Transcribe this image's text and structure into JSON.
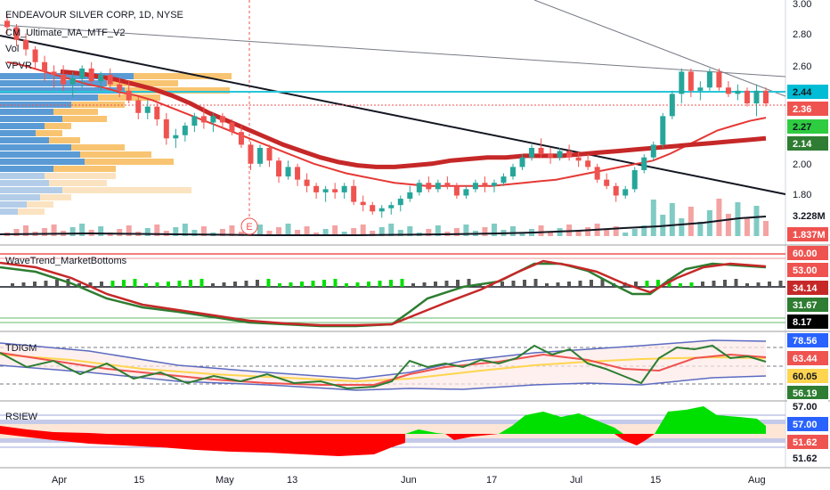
{
  "chart_title": "ENDEAVOUR SILVER CORP, 1D, NYSE",
  "legend": {
    "indicator1": "CM_Ultimate_MA_MTF_V2",
    "vol": "Vol",
    "vpvr": "VPVR"
  },
  "pane_titles": {
    "wavetrend": "WaveTrend_MarketBottoms",
    "tdi": "TDIGM",
    "rsi": "RSIEW"
  },
  "event_marker": "E",
  "price_axis_ticks": [
    "3.00",
    "2.80",
    "2.60",
    "1.80",
    "2.00"
  ],
  "price_badges": [
    {
      "value": "2.44",
      "color": "#00bcd4",
      "text_color": "#131722"
    },
    {
      "value": "2.36",
      "color": "#ef5350",
      "text_color": "#ffffff"
    },
    {
      "value": "2.27",
      "color": "#2ecc40",
      "text_color": "#131722"
    },
    {
      "value": "2.14",
      "color": "#2e7d32",
      "text_color": "#ffffff"
    },
    {
      "value": "3.228M",
      "color": "#ffffff",
      "text_color": "#131722"
    },
    {
      "value": "1.837M",
      "color": "#ef5350",
      "text_color": "#ffffff"
    }
  ],
  "wavetrend_badges": [
    {
      "value": "60.00",
      "color": "#ef5350",
      "text_color": "#ffffff"
    },
    {
      "value": "53.00",
      "color": "#ef5350",
      "text_color": "#ffffff"
    },
    {
      "value": "34.14",
      "color": "#c62828",
      "text_color": "#ffffff"
    },
    {
      "value": "31.67",
      "color": "#2e7d32",
      "text_color": "#ffffff"
    },
    {
      "value": "8.17",
      "color": "#000000",
      "text_color": "#ffffff"
    }
  ],
  "tdi_badges": [
    {
      "value": "78.56",
      "color": "#2962ff",
      "text_color": "#ffffff"
    },
    {
      "value": "63.44",
      "color": "#ef5350",
      "text_color": "#ffffff"
    },
    {
      "value": "60.05",
      "color": "#ffd54f",
      "text_color": "#131722"
    },
    {
      "value": "56.19",
      "color": "#2e7d32",
      "text_color": "#ffffff"
    }
  ],
  "rsi_badges": [
    {
      "value": "57.00",
      "color": "#ffffff",
      "text_color": "#131722"
    },
    {
      "value": "57.00",
      "color": "#2962ff",
      "text_color": "#ffffff"
    },
    {
      "value": "51.62",
      "color": "#ef5350",
      "text_color": "#ffffff"
    },
    {
      "value": "51.62",
      "color": "#ffffff",
      "text_color": "#131722"
    }
  ],
  "time_axis": [
    "Apr",
    "15",
    "May",
    "13",
    "Jun",
    "17",
    "Jul",
    "15",
    "Aug"
  ],
  "chart_data": {
    "type": "candlestick",
    "x_unit": "trading day",
    "candles": [
      [
        2.88,
        2.92,
        2.8,
        2.84
      ],
      [
        2.84,
        2.86,
        2.72,
        2.76
      ],
      [
        2.76,
        2.8,
        2.66,
        2.7
      ],
      [
        2.7,
        2.72,
        2.58,
        2.62
      ],
      [
        2.62,
        2.66,
        2.5,
        2.56
      ],
      [
        2.56,
        2.6,
        2.46,
        2.54
      ],
      [
        2.54,
        2.6,
        2.44,
        2.48
      ],
      [
        2.48,
        2.56,
        2.4,
        2.52
      ],
      [
        2.52,
        2.6,
        2.46,
        2.58
      ],
      [
        2.58,
        2.62,
        2.48,
        2.5
      ],
      [
        2.5,
        2.56,
        2.44,
        2.54
      ],
      [
        2.54,
        2.58,
        2.46,
        2.48
      ],
      [
        2.48,
        2.52,
        2.4,
        2.44
      ],
      [
        2.44,
        2.5,
        2.36,
        2.38
      ],
      [
        2.38,
        2.4,
        2.26,
        2.3
      ],
      [
        2.3,
        2.38,
        2.26,
        2.34
      ],
      [
        2.34,
        2.36,
        2.22,
        2.26
      ],
      [
        2.26,
        2.3,
        2.1,
        2.14
      ],
      [
        2.14,
        2.2,
        2.08,
        2.16
      ],
      [
        2.16,
        2.24,
        2.12,
        2.22
      ],
      [
        2.22,
        2.3,
        2.18,
        2.28
      ],
      [
        2.28,
        2.34,
        2.2,
        2.24
      ],
      [
        2.24,
        2.3,
        2.18,
        2.28
      ],
      [
        2.28,
        2.3,
        2.2,
        2.24
      ],
      [
        2.24,
        2.26,
        2.16,
        2.18
      ],
      [
        2.18,
        2.22,
        2.08,
        2.1
      ],
      [
        2.1,
        2.12,
        1.94,
        1.98
      ],
      [
        1.98,
        2.1,
        1.96,
        2.08
      ],
      [
        2.08,
        2.1,
        1.96,
        2.0
      ],
      [
        2.0,
        2.02,
        1.86,
        1.9
      ],
      [
        1.9,
        2.0,
        1.88,
        1.96
      ],
      [
        1.96,
        1.98,
        1.84,
        1.88
      ],
      [
        1.88,
        1.92,
        1.8,
        1.84
      ],
      [
        1.84,
        1.86,
        1.76,
        1.8
      ],
      [
        1.8,
        1.84,
        1.74,
        1.82
      ],
      [
        1.82,
        1.86,
        1.76,
        1.8
      ],
      [
        1.8,
        1.86,
        1.76,
        1.84
      ],
      [
        1.84,
        1.88,
        1.72,
        1.74
      ],
      [
        1.74,
        1.78,
        1.68,
        1.72
      ],
      [
        1.72,
        1.74,
        1.66,
        1.68
      ],
      [
        1.68,
        1.72,
        1.64,
        1.7
      ],
      [
        1.7,
        1.74,
        1.66,
        1.72
      ],
      [
        1.72,
        1.78,
        1.68,
        1.76
      ],
      [
        1.76,
        1.84,
        1.74,
        1.8
      ],
      [
        1.8,
        1.88,
        1.78,
        1.86
      ],
      [
        1.86,
        1.9,
        1.8,
        1.82
      ],
      [
        1.82,
        1.88,
        1.8,
        1.86
      ],
      [
        1.86,
        1.9,
        1.82,
        1.84
      ],
      [
        1.84,
        1.86,
        1.76,
        1.78
      ],
      [
        1.78,
        1.84,
        1.76,
        1.82
      ],
      [
        1.82,
        1.88,
        1.8,
        1.86
      ],
      [
        1.86,
        1.9,
        1.8,
        1.84
      ],
      [
        1.84,
        1.88,
        1.8,
        1.86
      ],
      [
        1.86,
        1.92,
        1.84,
        1.9
      ],
      [
        1.9,
        1.98,
        1.88,
        1.96
      ],
      [
        1.96,
        2.04,
        1.94,
        2.02
      ],
      [
        2.02,
        2.1,
        2.0,
        2.08
      ],
      [
        2.08,
        2.14,
        2.02,
        2.04
      ],
      [
        2.04,
        2.08,
        1.98,
        2.02
      ],
      [
        2.02,
        2.08,
        2.0,
        2.06
      ],
      [
        2.06,
        2.1,
        2.0,
        2.02
      ],
      [
        2.02,
        2.06,
        1.96,
        2.0
      ],
      [
        2.0,
        2.04,
        1.94,
        1.96
      ],
      [
        1.96,
        1.98,
        1.86,
        1.88
      ],
      [
        1.88,
        1.92,
        1.82,
        1.84
      ],
      [
        1.84,
        1.86,
        1.74,
        1.78
      ],
      [
        1.78,
        1.84,
        1.76,
        1.82
      ],
      [
        1.82,
        1.96,
        1.8,
        1.94
      ],
      [
        1.94,
        2.04,
        1.92,
        2.02
      ],
      [
        2.02,
        2.12,
        2.0,
        2.1
      ],
      [
        2.1,
        2.3,
        2.08,
        2.28
      ],
      [
        2.28,
        2.44,
        2.26,
        2.42
      ],
      [
        2.42,
        2.58,
        2.36,
        2.56
      ],
      [
        2.56,
        2.58,
        2.4,
        2.44
      ],
      [
        2.44,
        2.5,
        2.38,
        2.46
      ],
      [
        2.46,
        2.58,
        2.44,
        2.56
      ],
      [
        2.56,
        2.58,
        2.44,
        2.46
      ],
      [
        2.46,
        2.5,
        2.4,
        2.42
      ],
      [
        2.42,
        2.48,
        2.38,
        2.44
      ],
      [
        2.44,
        2.46,
        2.34,
        2.36
      ],
      [
        2.36,
        2.48,
        2.28,
        2.44
      ],
      [
        2.44,
        2.46,
        2.34,
        2.36
      ]
    ],
    "series": [
      {
        "name": "MA fast",
        "values": [
          2.62,
          2.6,
          2.57,
          2.54,
          2.51,
          2.48,
          2.46,
          2.43,
          2.41,
          2.38,
          2.34,
          2.3,
          2.26,
          2.22,
          2.18,
          2.14,
          2.1,
          2.06,
          2.02,
          1.98,
          1.95,
          1.92,
          1.9,
          1.88,
          1.86,
          1.85,
          1.84,
          1.84,
          1.84,
          1.84,
          1.84,
          1.85,
          1.86,
          1.87,
          1.88,
          1.9,
          1.92,
          1.94,
          1.96,
          1.98,
          2.0,
          2.04,
          2.09,
          2.14,
          2.19,
          2.22,
          2.25,
          2.27
        ]
      },
      {
        "name": "MA slow",
        "values": [
          2.56,
          2.55,
          2.53,
          2.51,
          2.48,
          2.45,
          2.41,
          2.36,
          2.3,
          2.25,
          2.2,
          2.15,
          2.1,
          2.06,
          2.02,
          1.99,
          1.97,
          1.96,
          1.96,
          1.97,
          1.98,
          2.0,
          2.01,
          2.02,
          2.02,
          2.03,
          2.03,
          2.03,
          2.04,
          2.05,
          2.06,
          2.07,
          2.08,
          2.09,
          2.1,
          2.11,
          2.12,
          2.13,
          2.14
        ]
      }
    ],
    "volume_y_ticks": [
      "3.228M",
      "1.837M"
    ],
    "price_range": [
      1.62,
      3.0
    ],
    "wavetrend_levels": [
      60.0,
      53.0,
      34.14,
      31.67,
      8.17
    ],
    "tdi_levels": [
      78.56,
      63.44,
      60.05,
      56.19
    ],
    "rsi_levels": [
      57.0,
      51.62
    ]
  }
}
